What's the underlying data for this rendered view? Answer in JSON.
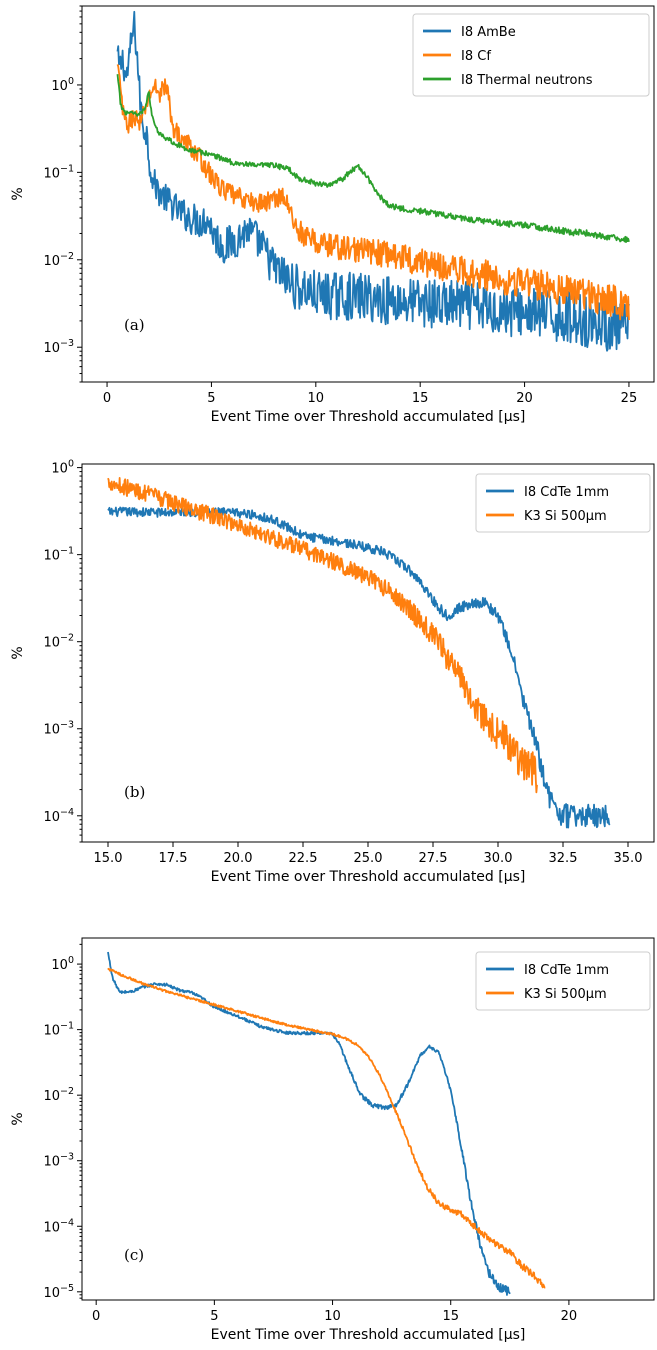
{
  "chart_data": [
    {
      "type": "line",
      "panel_label": "(a)",
      "xlabel": "Event Time over Threshold accumulated [μs]",
      "ylabel": "%",
      "yscale": "log",
      "xlim": [
        -1.2,
        26.2
      ],
      "ylim": [
        0.0004,
        8
      ],
      "xticks": [
        0,
        5,
        10,
        15,
        20,
        25
      ],
      "xtick_labels": [
        "0",
        "5",
        "10",
        "15",
        "20",
        "25"
      ],
      "yticks": [
        0.001,
        0.01,
        0.1,
        1
      ],
      "legend_position": "top-right",
      "series": [
        {
          "name": "I8 AmBe",
          "color": "#1f77b4",
          "noise": 0.38,
          "floor": 0.00045,
          "points": [
            [
              0.5,
              2.2
            ],
            [
              0.6,
              1.5
            ],
            [
              0.75,
              2.0
            ],
            [
              0.9,
              1.2
            ],
            [
              1.0,
              1.5
            ],
            [
              1.15,
              3.0
            ],
            [
              1.3,
              5.0
            ],
            [
              1.45,
              2.0
            ],
            [
              1.6,
              0.6
            ],
            [
              1.75,
              0.32
            ],
            [
              1.9,
              0.28
            ],
            [
              2.0,
              0.15
            ],
            [
              2.2,
              0.08
            ],
            [
              2.5,
              0.06
            ],
            [
              3.0,
              0.045
            ],
            [
              3.5,
              0.035
            ],
            [
              4.0,
              0.03
            ],
            [
              4.5,
              0.027
            ],
            [
              4.8,
              0.03
            ],
            [
              5.2,
              0.018
            ],
            [
              5.6,
              0.014
            ],
            [
              6.2,
              0.017
            ],
            [
              6.7,
              0.022
            ],
            [
              7.1,
              0.018
            ],
            [
              7.6,
              0.012
            ],
            [
              8.0,
              0.008
            ],
            [
              8.6,
              0.006
            ],
            [
              9.0,
              0.005
            ],
            [
              9.5,
              0.0045
            ],
            [
              10,
              0.004
            ],
            [
              11,
              0.0038
            ],
            [
              12,
              0.0038
            ],
            [
              13,
              0.0035
            ],
            [
              14,
              0.0034
            ],
            [
              15,
              0.0032
            ],
            [
              16,
              0.0031
            ],
            [
              17,
              0.003
            ],
            [
              18,
              0.0028
            ],
            [
              19,
              0.0026
            ],
            [
              20,
              0.0025
            ],
            [
              21,
              0.0023
            ],
            [
              22,
              0.0022
            ],
            [
              23,
              0.002
            ],
            [
              24,
              0.0018
            ],
            [
              25,
              0.0016
            ]
          ]
        },
        {
          "name": "I8 Cf",
          "color": "#ff7f0e",
          "noise": 0.26,
          "floor": 0.0006,
          "points": [
            [
              0.5,
              1.6
            ],
            [
              0.65,
              0.9
            ],
            [
              0.8,
              0.4
            ],
            [
              1.0,
              0.35
            ],
            [
              1.3,
              0.45
            ],
            [
              1.6,
              0.35
            ],
            [
              1.9,
              0.6
            ],
            [
              2.1,
              0.85
            ],
            [
              2.3,
              0.95
            ],
            [
              2.5,
              0.8
            ],
            [
              2.7,
              0.95
            ],
            [
              2.9,
              0.9
            ],
            [
              3.1,
              0.35
            ],
            [
              3.5,
              0.25
            ],
            [
              4.0,
              0.2
            ],
            [
              4.5,
              0.14
            ],
            [
              5.0,
              0.09
            ],
            [
              5.5,
              0.065
            ],
            [
              6.0,
              0.055
            ],
            [
              6.5,
              0.05
            ],
            [
              7.0,
              0.045
            ],
            [
              7.5,
              0.045
            ],
            [
              8.0,
              0.05
            ],
            [
              8.4,
              0.055
            ],
            [
              8.7,
              0.04
            ],
            [
              9.0,
              0.025
            ],
            [
              9.5,
              0.018
            ],
            [
              10,
              0.016
            ],
            [
              11,
              0.014
            ],
            [
              12,
              0.013
            ],
            [
              13,
              0.012
            ],
            [
              14,
              0.011
            ],
            [
              15,
              0.0095
            ],
            [
              16,
              0.0085
            ],
            [
              17,
              0.0075
            ],
            [
              18,
              0.0068
            ],
            [
              19,
              0.006
            ],
            [
              20,
              0.0055
            ],
            [
              21,
              0.005
            ],
            [
              22,
              0.0045
            ],
            [
              23,
              0.004
            ],
            [
              24,
              0.0035
            ],
            [
              25,
              0.003
            ]
          ]
        },
        {
          "name": "I8 Thermal neutrons",
          "color": "#2ca02c",
          "noise": 0.07,
          "floor": 0.0006,
          "points": [
            [
              0.5,
              1.3
            ],
            [
              0.65,
              0.6
            ],
            [
              0.8,
              0.5
            ],
            [
              1.0,
              0.48
            ],
            [
              1.2,
              0.5
            ],
            [
              1.5,
              0.45
            ],
            [
              1.8,
              0.55
            ],
            [
              2.0,
              0.8
            ],
            [
              2.15,
              0.45
            ],
            [
              2.4,
              0.3
            ],
            [
              2.8,
              0.25
            ],
            [
              3.5,
              0.2
            ],
            [
              4.0,
              0.18
            ],
            [
              5.0,
              0.16
            ],
            [
              6.0,
              0.13
            ],
            [
              7.0,
              0.12
            ],
            [
              8.0,
              0.12
            ],
            [
              8.7,
              0.11
            ],
            [
              9.2,
              0.085
            ],
            [
              10,
              0.075
            ],
            [
              10.8,
              0.072
            ],
            [
              11.3,
              0.085
            ],
            [
              11.8,
              0.11
            ],
            [
              12.1,
              0.115
            ],
            [
              12.5,
              0.085
            ],
            [
              13,
              0.055
            ],
            [
              13.5,
              0.042
            ],
            [
              14,
              0.039
            ],
            [
              15,
              0.036
            ],
            [
              16,
              0.033
            ],
            [
              17,
              0.03
            ],
            [
              18,
              0.028
            ],
            [
              19,
              0.026
            ],
            [
              20,
              0.025
            ],
            [
              21,
              0.023
            ],
            [
              22,
              0.021
            ],
            [
              23,
              0.02
            ],
            [
              24,
              0.018
            ],
            [
              25,
              0.017
            ]
          ]
        }
      ]
    },
    {
      "type": "line",
      "panel_label": "(b)",
      "xlabel": "Event Time over Threshold accumulated [μs]",
      "ylabel": "%",
      "yscale": "log",
      "xlim": [
        14.0,
        36.0
      ],
      "ylim": [
        5e-05,
        1.1
      ],
      "xticks": [
        15.0,
        17.5,
        20.0,
        22.5,
        25.0,
        27.5,
        30.0,
        32.5,
        35.0
      ],
      "xtick_labels": [
        "15.0",
        "17.5",
        "20.0",
        "22.5",
        "25.0",
        "27.5",
        "30.0",
        "32.5",
        "35.0"
      ],
      "yticks": [
        0.0001,
        0.001,
        0.01,
        0.1,
        1
      ],
      "legend_position": "top-right",
      "series": [
        {
          "name": "I8 CdTe 1mm",
          "color": "#1f77b4",
          "noise": 0.12,
          "floor": 5e-05,
          "points": [
            [
              15.0,
              0.31
            ],
            [
              16.0,
              0.31
            ],
            [
              17.0,
              0.305
            ],
            [
              18.0,
              0.31
            ],
            [
              19.0,
              0.31
            ],
            [
              20.0,
              0.3
            ],
            [
              20.5,
              0.29
            ],
            [
              21.0,
              0.27
            ],
            [
              21.5,
              0.24
            ],
            [
              22.0,
              0.2
            ],
            [
              22.5,
              0.165
            ],
            [
              23.0,
              0.155
            ],
            [
              24.0,
              0.14
            ],
            [
              25.0,
              0.12
            ],
            [
              25.5,
              0.11
            ],
            [
              26.0,
              0.09
            ],
            [
              26.5,
              0.07
            ],
            [
              27.0,
              0.05
            ],
            [
              27.5,
              0.03
            ],
            [
              28.0,
              0.02
            ],
            [
              28.5,
              0.024
            ],
            [
              29.0,
              0.028
            ],
            [
              29.5,
              0.028
            ],
            [
              30.0,
              0.02
            ],
            [
              30.5,
              0.008
            ],
            [
              31.0,
              0.002
            ],
            [
              31.5,
              0.0006
            ],
            [
              32.0,
              0.00015
            ],
            [
              32.5,
              0.0001
            ],
            [
              33.0,
              0.0001
            ],
            [
              34.3,
              0.0001
            ]
          ]
        },
        {
          "name": "K3 Si 500μm",
          "color": "#ff7f0e",
          "noise": 0.22,
          "floor": 5e-05,
          "points": [
            [
              15.0,
              0.7
            ],
            [
              16.0,
              0.55
            ],
            [
              17.0,
              0.45
            ],
            [
              18.0,
              0.35
            ],
            [
              19.0,
              0.28
            ],
            [
              20.0,
              0.22
            ],
            [
              21.0,
              0.17
            ],
            [
              22.0,
              0.13
            ],
            [
              23.0,
              0.1
            ],
            [
              24.0,
              0.075
            ],
            [
              25.0,
              0.055
            ],
            [
              26.0,
              0.035
            ],
            [
              26.5,
              0.025
            ],
            [
              27.0,
              0.018
            ],
            [
              27.5,
              0.012
            ],
            [
              28.0,
              0.007
            ],
            [
              28.5,
              0.004
            ],
            [
              29.0,
              0.0022
            ],
            [
              29.5,
              0.0013
            ],
            [
              30.0,
              0.0009
            ],
            [
              30.5,
              0.0006
            ],
            [
              31.0,
              0.0004
            ],
            [
              31.5,
              0.0003
            ]
          ]
        }
      ]
    },
    {
      "type": "line",
      "panel_label": "(c)",
      "xlabel": "Event Time over Threshold accumulated [μs]",
      "ylabel": "%",
      "yscale": "log",
      "xlim": [
        -0.6,
        23.6
      ],
      "ylim": [
        7.5e-06,
        2.5
      ],
      "xticks": [
        0,
        5,
        10,
        15,
        20
      ],
      "xtick_labels": [
        "0",
        "5",
        "10",
        "15",
        "20"
      ],
      "yticks": [
        1e-05,
        0.0001,
        0.001,
        0.01,
        0.1,
        1
      ],
      "legend_position": "top-right",
      "series": [
        {
          "name": "I8 CdTe 1mm",
          "color": "#1f77b4",
          "noise": 0.05,
          "floor": 7.5e-06,
          "points": [
            [
              0.5,
              1.5
            ],
            [
              0.7,
              0.6
            ],
            [
              1.0,
              0.37
            ],
            [
              1.5,
              0.38
            ],
            [
              2.0,
              0.45
            ],
            [
              2.5,
              0.5
            ],
            [
              3.0,
              0.48
            ],
            [
              3.5,
              0.4
            ],
            [
              4.0,
              0.37
            ],
            [
              4.5,
              0.3
            ],
            [
              5.0,
              0.22
            ],
            [
              6.0,
              0.16
            ],
            [
              7.0,
              0.11
            ],
            [
              8.0,
              0.09
            ],
            [
              9.0,
              0.088
            ],
            [
              9.5,
              0.09
            ],
            [
              10.0,
              0.085
            ],
            [
              10.3,
              0.06
            ],
            [
              10.7,
              0.025
            ],
            [
              11.2,
              0.01
            ],
            [
              11.7,
              0.007
            ],
            [
              12.2,
              0.0065
            ],
            [
              12.7,
              0.007
            ],
            [
              13.2,
              0.015
            ],
            [
              13.7,
              0.04
            ],
            [
              14.1,
              0.055
            ],
            [
              14.5,
              0.045
            ],
            [
              15.0,
              0.012
            ],
            [
              15.4,
              0.002
            ],
            [
              15.8,
              0.0003
            ],
            [
              16.2,
              6e-05
            ],
            [
              16.6,
              2e-05
            ],
            [
              17.0,
              1.2e-05
            ],
            [
              17.5,
              1e-05
            ]
          ]
        },
        {
          "name": "K3 Si 500μm",
          "color": "#ff7f0e",
          "noise": 0.04,
          "floor": 7.5e-06,
          "points": [
            [
              0.5,
              0.85
            ],
            [
              1.0,
              0.7
            ],
            [
              2.0,
              0.5
            ],
            [
              3.0,
              0.38
            ],
            [
              4.0,
              0.3
            ],
            [
              5.0,
              0.24
            ],
            [
              6.0,
              0.19
            ],
            [
              7.0,
              0.15
            ],
            [
              8.0,
              0.12
            ],
            [
              9.0,
              0.1
            ],
            [
              10.0,
              0.085
            ],
            [
              10.5,
              0.075
            ],
            [
              11.0,
              0.06
            ],
            [
              11.5,
              0.04
            ],
            [
              12.0,
              0.02
            ],
            [
              12.5,
              0.008
            ],
            [
              13.0,
              0.003
            ],
            [
              13.5,
              0.001
            ],
            [
              14.0,
              0.0004
            ],
            [
              14.5,
              0.00022
            ],
            [
              15.0,
              0.00018
            ],
            [
              15.5,
              0.00015
            ],
            [
              16.0,
              0.0001
            ],
            [
              16.5,
              7e-05
            ],
            [
              17.0,
              5e-05
            ],
            [
              17.5,
              4e-05
            ],
            [
              18.0,
              2.5e-05
            ],
            [
              18.5,
              1.8e-05
            ],
            [
              19.0,
              1.2e-05
            ]
          ]
        }
      ]
    }
  ]
}
